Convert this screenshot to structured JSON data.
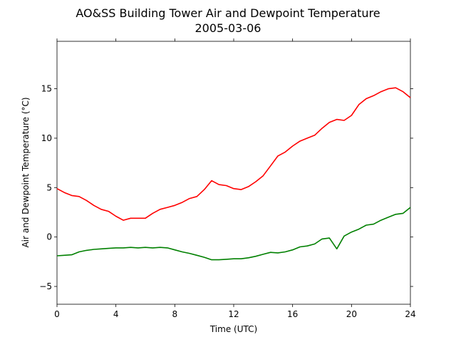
{
  "chart_data": {
    "type": "line",
    "title": "AO&SS Building Tower Air and Dewpoint Temperature",
    "subtitle": "2005-03-06",
    "xlabel": "Time (UTC)",
    "ylabel": "Air and Dewpoint Temperature (°C)",
    "xlim": [
      0,
      24
    ],
    "ylim": [
      -6.8,
      19.8
    ],
    "xticks": [
      0,
      4,
      8,
      12,
      16,
      20,
      24
    ],
    "yticks": [
      -5,
      0,
      5,
      10,
      15
    ],
    "xtick_labels": [
      "0",
      "4",
      "8",
      "12",
      "16",
      "20",
      "24"
    ],
    "ytick_labels": [
      "−5",
      "0",
      "5",
      "10",
      "15"
    ],
    "grid": false,
    "legend": "none",
    "series": [
      {
        "color": "#ff0000",
        "x": [
          0,
          0.5,
          1,
          1.5,
          2,
          2.5,
          3,
          3.5,
          4,
          4.5,
          5,
          5.5,
          6,
          6.5,
          7,
          7.5,
          8,
          8.5,
          9,
          9.5,
          10,
          10.5,
          11,
          11.5,
          12,
          12.5,
          13,
          13.5,
          14,
          14.5,
          15,
          15.5,
          16,
          16.5,
          17,
          17.5,
          18,
          18.5,
          19,
          19.5,
          20,
          20.5,
          21,
          21.5,
          22,
          22.5,
          23,
          23.5,
          24
        ],
        "values": [
          4.9,
          4.5,
          4.2,
          4.1,
          3.7,
          3.2,
          2.8,
          2.6,
          2.1,
          1.7,
          1.9,
          1.9,
          1.9,
          2.4,
          2.8,
          3.0,
          3.2,
          3.5,
          3.9,
          4.1,
          4.8,
          5.7,
          5.3,
          5.2,
          4.9,
          4.8,
          5.1,
          5.6,
          6.2,
          7.2,
          8.2,
          8.6,
          9.2,
          9.7,
          10.0,
          10.3,
          11.0,
          11.6,
          11.9,
          11.8,
          12.3,
          13.4,
          14.0,
          14.3,
          14.7,
          15.0,
          15.1,
          14.7,
          14.1
        ]
      },
      {
        "color": "#008000",
        "x": [
          0,
          0.5,
          1,
          1.5,
          2,
          2.5,
          3,
          3.5,
          4,
          4.5,
          5,
          5.5,
          6,
          6.5,
          7,
          7.5,
          8,
          8.5,
          9,
          9.5,
          10,
          10.5,
          11,
          11.5,
          12,
          12.5,
          13,
          13.5,
          14,
          14.5,
          15,
          15.5,
          16,
          16.5,
          17,
          17.5,
          18,
          18.5,
          19,
          19.5,
          20,
          20.5,
          21,
          21.5,
          22,
          22.5,
          23,
          23.5,
          24
        ],
        "values": [
          -1.9,
          -1.85,
          -1.8,
          -1.5,
          -1.35,
          -1.25,
          -1.2,
          -1.15,
          -1.1,
          -1.1,
          -1.05,
          -1.1,
          -1.05,
          -1.1,
          -1.05,
          -1.1,
          -1.3,
          -1.5,
          -1.65,
          -1.85,
          -2.05,
          -2.3,
          -2.3,
          -2.25,
          -2.2,
          -2.2,
          -2.1,
          -1.95,
          -1.75,
          -1.55,
          -1.6,
          -1.5,
          -1.3,
          -1.0,
          -0.9,
          -0.7,
          -0.2,
          -0.1,
          -1.2,
          0.1,
          0.5,
          0.8,
          1.2,
          1.3,
          1.7,
          2.0,
          2.3,
          2.4,
          3.0
        ]
      }
    ]
  }
}
